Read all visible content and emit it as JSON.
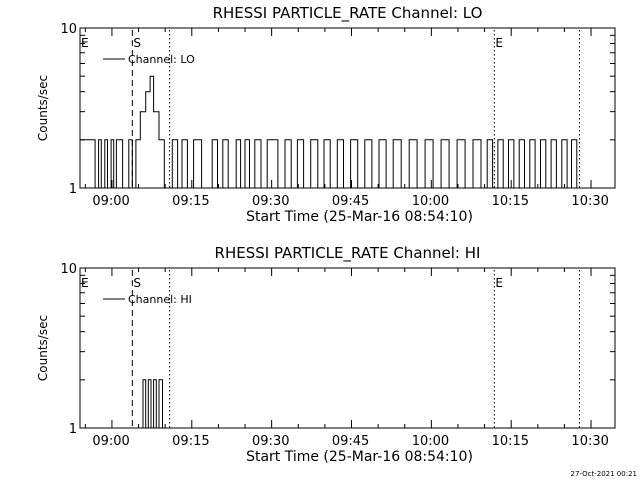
{
  "stamp": "27-Oct-2021 00:21",
  "chart_data": [
    {
      "type": "line",
      "title": "RHESSI PARTICLE_RATE Channel: LO",
      "xlabel": "Start Time (25-Mar-16 08:54:10)",
      "ylabel": "Counts/sec",
      "y_scale": "log",
      "ylim": [
        1,
        10
      ],
      "y_ticks": [
        "1",
        "10"
      ],
      "xlim": [
        "08:54:10",
        "10:34:40"
      ],
      "x_ticks": [
        "09:00",
        "09:15",
        "09:30",
        "09:45",
        "10:00",
        "10:15",
        "10:30"
      ],
      "legend": {
        "position": "top-left",
        "label": "Channel: LO"
      },
      "markers": [
        {
          "label": "E",
          "time": "08:54:10",
          "style": "none"
        },
        {
          "label": "S",
          "time": "09:04:00",
          "style": "dashed"
        },
        {
          "label": "",
          "time": "09:11:00",
          "style": "dotted"
        },
        {
          "label": "E",
          "time": "10:12:00",
          "style": "dotted"
        },
        {
          "label": "",
          "time": "10:28:00",
          "style": "dotted"
        }
      ],
      "series": [
        {
          "x": [
            "08:54:10",
            "08:56:30",
            "08:57:00",
            "08:57:40",
            "08:58:10",
            "08:58:50",
            "08:59:20",
            "09:00:00",
            "09:00:30",
            "09:01:00",
            "09:02:10",
            "09:03:20",
            "09:04:00",
            "09:04:40",
            "09:05:30",
            "09:06:30",
            "09:07:20",
            "09:08:00",
            "09:09:00",
            "09:10:00",
            "09:10:50",
            "09:11:30",
            "09:12:30",
            "09:13:20",
            "09:14:20",
            "09:15:30",
            "09:17:00",
            "09:18:10",
            "09:19:00",
            "09:20:00",
            "09:21:00",
            "09:22:00",
            "09:23:30",
            "09:24:20",
            "09:25:10",
            "09:26:00",
            "09:27:00",
            "09:28:10",
            "09:29:20",
            "09:30:20",
            "09:31:20",
            "09:32:40",
            "09:33:50",
            "09:35:00",
            "09:36:10",
            "09:37:30",
            "09:38:50",
            "09:40:00",
            "09:41:10",
            "09:42:30",
            "09:43:40",
            "09:45:00",
            "09:46:20",
            "09:47:40",
            "09:49:00",
            "09:50:20",
            "09:51:40",
            "09:53:00",
            "09:54:30",
            "09:56:00",
            "09:57:30",
            "09:59:00",
            "10:00:30",
            "10:02:00",
            "10:03:30",
            "10:05:00",
            "10:06:30",
            "10:08:00",
            "10:09:30",
            "10:10:40",
            "10:11:40",
            "10:12:40",
            "10:13:40",
            "10:14:40",
            "10:15:40",
            "10:16:40",
            "10:17:40",
            "10:18:40",
            "10:19:40",
            "10:20:40",
            "10:21:40",
            "10:22:40",
            "10:23:40",
            "10:24:40",
            "10:25:40",
            "10:26:30",
            "10:27:30"
          ],
          "values": [
            2,
            2,
            1,
            2,
            1,
            2,
            1,
            2,
            1,
            2,
            1,
            2,
            1,
            2,
            3,
            4,
            5,
            3,
            2,
            1,
            1,
            2,
            1,
            2,
            1,
            2,
            1,
            1,
            2,
            1,
            2,
            1,
            2,
            1,
            2,
            1,
            2,
            1,
            2,
            2,
            1,
            2,
            1,
            2,
            1,
            2,
            1,
            2,
            1,
            2,
            1,
            2,
            1,
            2,
            1,
            2,
            1,
            2,
            1,
            2,
            1,
            2,
            1,
            2,
            1,
            2,
            1,
            2,
            1,
            2,
            1,
            2,
            1,
            2,
            1,
            2,
            1,
            2,
            1,
            2,
            1,
            2,
            1,
            2,
            1,
            2,
            1
          ]
        }
      ]
    },
    {
      "type": "line",
      "title": "RHESSI PARTICLE_RATE Channel: HI",
      "xlabel": "Start Time (25-Mar-16 08:54:10)",
      "ylabel": "Counts/sec",
      "y_scale": "log",
      "ylim": [
        1,
        10
      ],
      "y_ticks": [
        "1",
        "10"
      ],
      "xlim": [
        "08:54:10",
        "10:34:40"
      ],
      "x_ticks": [
        "09:00",
        "09:15",
        "09:30",
        "09:45",
        "10:00",
        "10:15",
        "10:30"
      ],
      "legend": {
        "position": "top-left",
        "label": "Channel: HI"
      },
      "markers": [
        {
          "label": "E",
          "time": "08:54:10",
          "style": "none"
        },
        {
          "label": "S",
          "time": "09:04:00",
          "style": "dashed"
        },
        {
          "label": "",
          "time": "09:11:00",
          "style": "dotted"
        },
        {
          "label": "E",
          "time": "10:12:00",
          "style": "dotted"
        },
        {
          "label": "",
          "time": "10:28:00",
          "style": "dotted"
        }
      ],
      "series": [
        {
          "x": [
            "09:05:30",
            "09:06:00",
            "09:06:30",
            "09:07:00",
            "09:07:30",
            "09:08:00",
            "09:08:30",
            "09:09:00",
            "09:09:40"
          ],
          "values": [
            1,
            2,
            1,
            2,
            1,
            2,
            1,
            2,
            1
          ]
        }
      ]
    }
  ]
}
